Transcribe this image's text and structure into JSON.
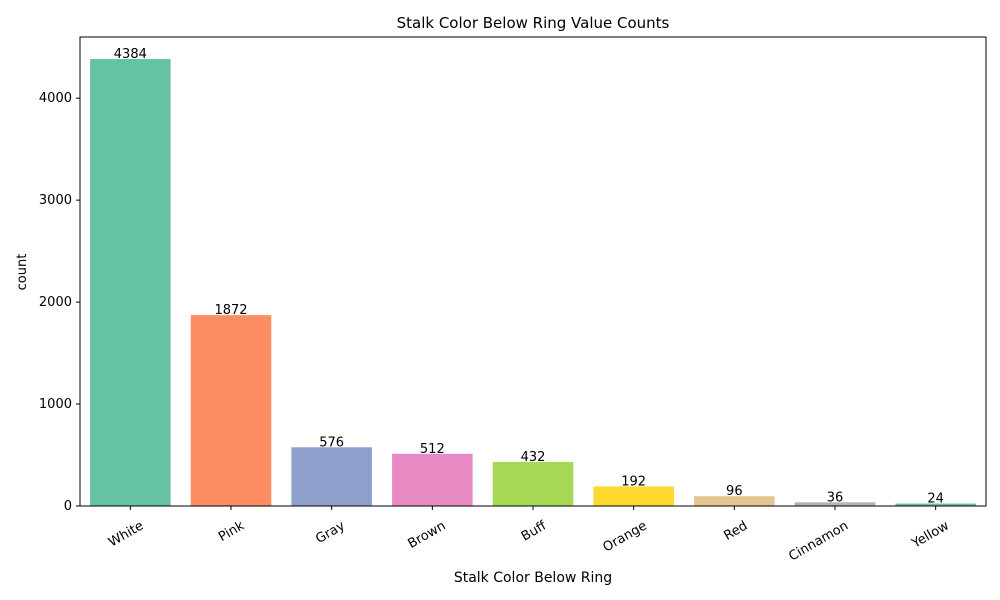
{
  "chart_data": {
    "type": "bar",
    "title": "Stalk Color Below Ring Value Counts",
    "xlabel": "Stalk Color Below Ring",
    "ylabel": "count",
    "categories": [
      "White",
      "Pink",
      "Gray",
      "Brown",
      "Buff",
      "Orange",
      "Red",
      "Cinnamon",
      "Yellow"
    ],
    "values": [
      4384,
      1872,
      576,
      512,
      432,
      192,
      96,
      36,
      24
    ],
    "data_labels": [
      "4384",
      "1872",
      "576",
      "512",
      "432",
      "192",
      "96",
      "36",
      "24"
    ],
    "colors": [
      "#66c2a5",
      "#fc8d62",
      "#8da0cb",
      "#e78ac3",
      "#a6d854",
      "#ffd92f",
      "#e5c494",
      "#b3b3b3",
      "#66c2a5"
    ],
    "ylim": [
      0,
      4600
    ],
    "yticks": [
      0,
      1000,
      2000,
      3000,
      4000
    ],
    "ytick_labels": [
      "0",
      "1000",
      "2000",
      "3000",
      "4000"
    ],
    "grid": false,
    "legend": "none"
  }
}
